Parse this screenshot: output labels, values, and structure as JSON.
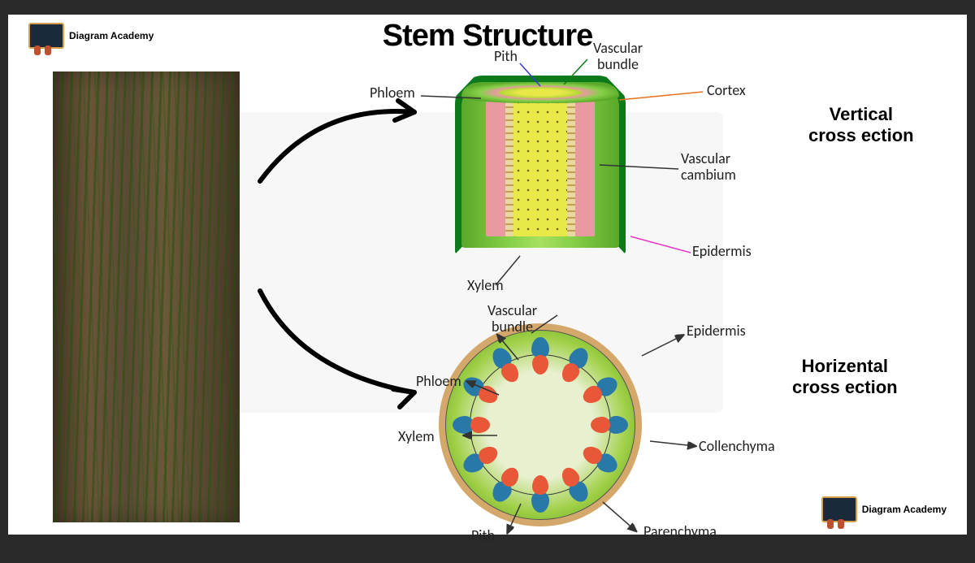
{
  "title": "Stem Structure",
  "brand": "Diagram Academy",
  "sections": {
    "vertical": "Vertical\ncross ection",
    "horizontal": "Horizental\ncross ection"
  },
  "vertical_labels": {
    "pith": "Pith",
    "vascular_bundle": "Vascular\nbundle",
    "phloem": "Phloem",
    "cortex": "Cortex",
    "vascular_cambium": "Vascular\ncambium",
    "epidermis": "Epidermis",
    "xylem": "Xylem"
  },
  "horizontal_labels": {
    "vascular_bundle": "Vascular\nbundle",
    "epidermis": "Epidermis",
    "phloem": "Phloem",
    "xylem": "Xylem",
    "collenchyma": "Collenchyma",
    "pith": "Pith",
    "parenchyma": "Parenchyma"
  },
  "styling": {
    "colors": {
      "background": "#2a2a2a",
      "page": "#ffffff",
      "bark_brown": "#5a4832",
      "bark_green": "#3a6018",
      "epidermis_outer": "#0a7a1a",
      "cortex_green": "#86d048",
      "phloem_pink": "#e89aa0",
      "xylem_yellow": "#e8e848",
      "cambium_tan": "#e8d8a0",
      "hcs_epidermis": "#d4a86a",
      "hcs_cortex_outer": "#78b828",
      "hcs_xylem": "#e85838",
      "hcs_phloem": "#2878a8",
      "ptr_orange": "#e8701a",
      "ptr_blue": "#3838d8",
      "ptr_pink": "#e838c8",
      "ptr_dark": "#333333"
    },
    "title_fontsize": 38,
    "section_fontsize": 22,
    "label_fontsize": 18,
    "bundle_count": 12
  }
}
